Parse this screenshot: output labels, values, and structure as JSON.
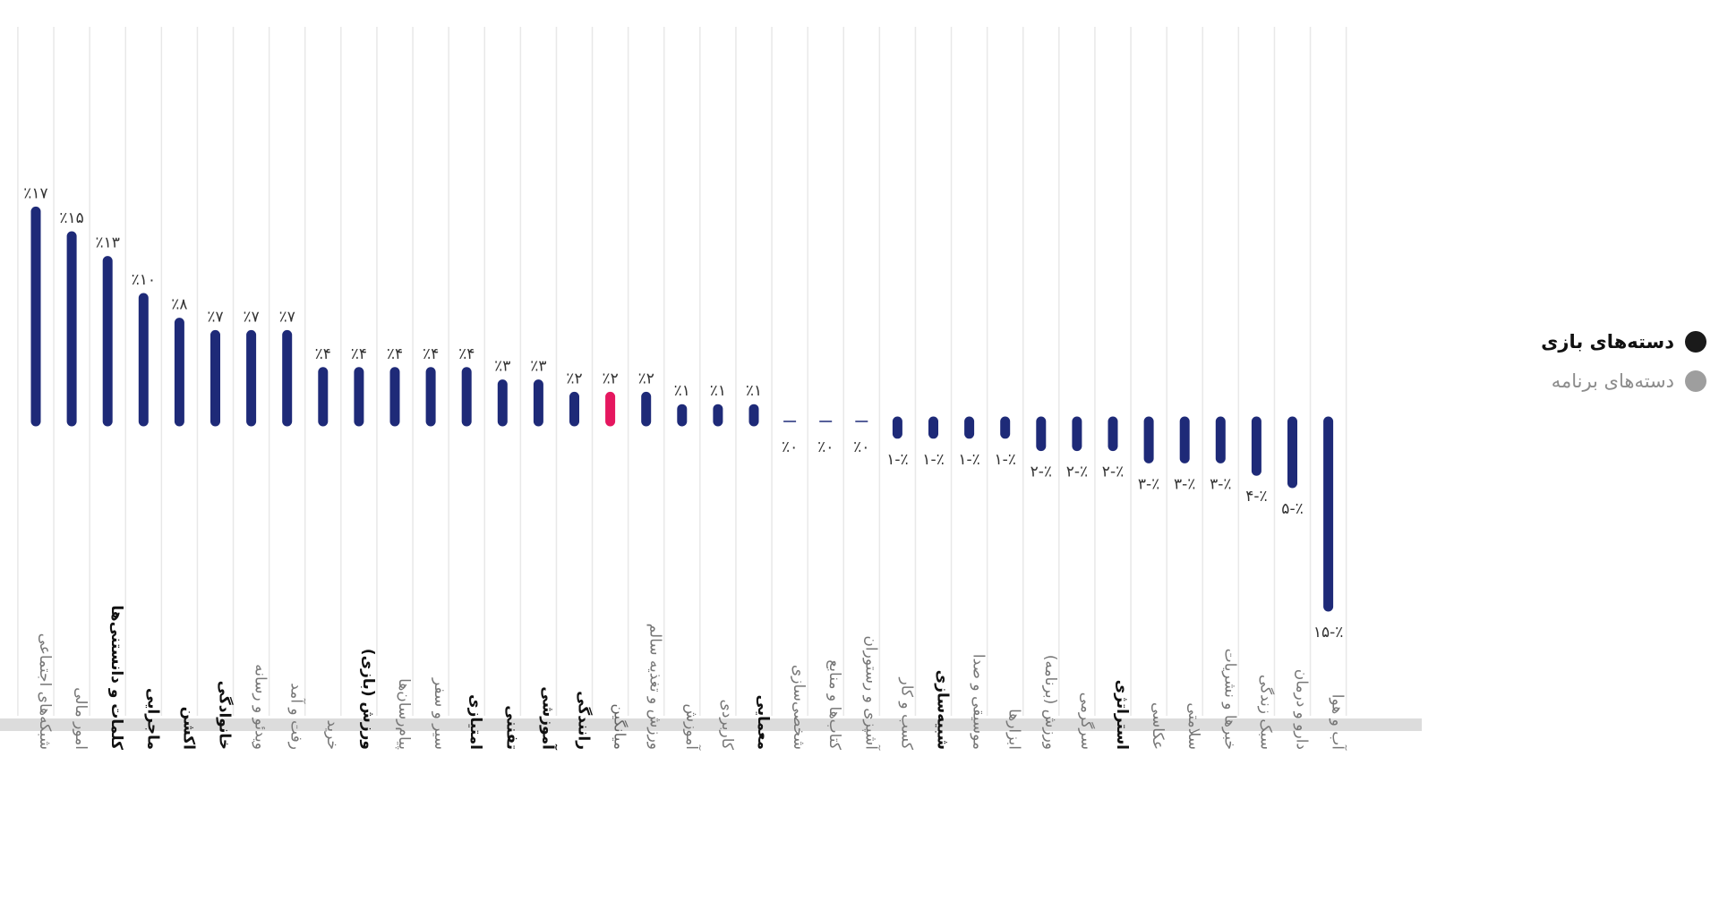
{
  "chart_data": {
    "type": "bar",
    "categories": [
      "شبکه‌های اجتماعی",
      "امور مالی",
      "کلمات و دانستنی‌ها",
      "ماجرایی",
      "اکشن",
      "خانوادگی",
      "ویدئو و رسانه",
      "رفت و آمد",
      "خرید",
      "ورزش (بازی)",
      "پیام‌رسان‌ها",
      "سیر و سفر",
      "امتیازی",
      "تفننی",
      "آموزشی",
      "رانندگی",
      "میانگین",
      "ورزش و تغذیه سالم",
      "آموزش",
      "کاربردی",
      "معمایی",
      "شخصی‌سازی",
      "کتاب‌ها و منابع",
      "آشپزی و رستوران",
      "کسب و کار",
      "شبیه‌سازی",
      "موسیقی و صدا",
      "ابزارها",
      "ورزش (برنامه)",
      "سرگرمی",
      "استراتژی",
      "عکاسی",
      "سلامتی",
      "خبرها و نشریات",
      "سبک زندگی",
      "دارو و درمان",
      "آب و هوا"
    ],
    "values": [
      17,
      15,
      13,
      10,
      8,
      7,
      7,
      7,
      4,
      4,
      4,
      4,
      4,
      3,
      3,
      2,
      2,
      2,
      1,
      1,
      1,
      0,
      0,
      0,
      -1,
      -1,
      -1,
      -1,
      -2,
      -2,
      -2,
      -3,
      -3,
      -3,
      -4,
      -5,
      -15
    ],
    "value_labels": [
      "٪۱۷",
      "٪۱۵",
      "٪۱۳",
      "٪۱۰",
      "٪۸",
      "٪۷",
      "٪۷",
      "٪۷",
      "٪۴",
      "٪۴",
      "٪۴",
      "٪۴",
      "٪۴",
      "٪۳",
      "٪۳",
      "٪۲",
      "٪۲",
      "٪۲",
      "٪۱",
      "٪۱",
      "٪۱",
      "٪۰",
      "٪۰",
      "٪۰",
      "٪-۱",
      "٪-۱",
      "٪-۱",
      "٪-۱",
      "٪-۲",
      "٪-۲",
      "٪-۲",
      "٪-۳",
      "٪-۳",
      "٪-۳",
      "٪-۴",
      "٪-۵",
      "٪-۱۵"
    ],
    "group": [
      "app",
      "app",
      "game",
      "game",
      "game",
      "game",
      "app",
      "app",
      "app",
      "game",
      "app",
      "app",
      "game",
      "game",
      "game",
      "game",
      "average",
      "app",
      "app",
      "app",
      "game",
      "app",
      "app",
      "app",
      "app",
      "game",
      "app",
      "app",
      "app",
      "app",
      "game",
      "app",
      "app",
      "app",
      "app",
      "app",
      "app"
    ],
    "highlight_index": 16,
    "ylim": [
      -16,
      18
    ],
    "grid": true,
    "legend_position": "right",
    "colors": {
      "bar": "#1e2a78",
      "highlight": "#e5175f",
      "grid": "#e8e8e8",
      "baseline": "#dcdcdc"
    }
  },
  "legend": {
    "game": "دسته‌های بازی",
    "app": "دسته‌های برنامه"
  }
}
